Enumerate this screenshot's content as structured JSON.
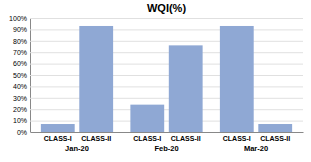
{
  "chart_data": {
    "type": "bar",
    "title": "WQI(%)",
    "categories": [
      "Jan-20",
      "Feb-20",
      "Mar-20"
    ],
    "series": [
      {
        "name": "CLASS-I",
        "color": "#8fa8d4",
        "values": [
          7,
          24,
          93
        ]
      },
      {
        "name": "CLASS-II",
        "color": "#8fa8d4",
        "values": [
          93,
          76,
          7
        ]
      }
    ],
    "ylim": [
      0,
      100
    ],
    "yticks": [
      {
        "value": 0,
        "label": "0%"
      },
      {
        "value": 10,
        "label": "10%"
      },
      {
        "value": 20,
        "label": "20%"
      },
      {
        "value": 30,
        "label": "30%"
      },
      {
        "value": 40,
        "label": "40%"
      },
      {
        "value": 50,
        "label": "50%"
      },
      {
        "value": 60,
        "label": "60%"
      },
      {
        "value": 70,
        "label": "70%"
      },
      {
        "value": 80,
        "label": "80%"
      },
      {
        "value": 90,
        "label": "90%"
      },
      {
        "value": 100,
        "label": "100%"
      }
    ],
    "grid": true
  }
}
